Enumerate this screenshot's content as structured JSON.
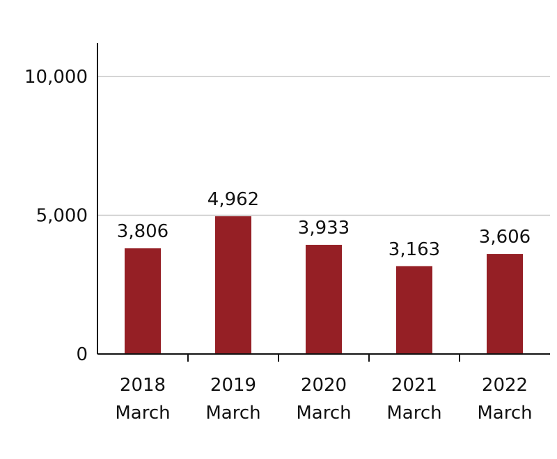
{
  "chart_data": {
    "type": "bar",
    "title": "",
    "xlabel": "",
    "ylabel": "",
    "categories": [
      [
        "2018",
        "March"
      ],
      [
        "2019",
        "March"
      ],
      [
        "2020",
        "March"
      ],
      [
        "2021",
        "March"
      ],
      [
        "2022",
        "March"
      ]
    ],
    "values": [
      3806,
      4962,
      3933,
      3163,
      3606
    ],
    "data_labels": [
      "3,806",
      "4,962",
      "3,933",
      "3,163",
      "3,606"
    ],
    "ylim": [
      0,
      11200
    ],
    "yticks": [
      0,
      5000,
      10000
    ],
    "ytick_labels": [
      "0",
      "5,000",
      "10,000"
    ],
    "grid": true,
    "bar_color": "#951F25"
  }
}
